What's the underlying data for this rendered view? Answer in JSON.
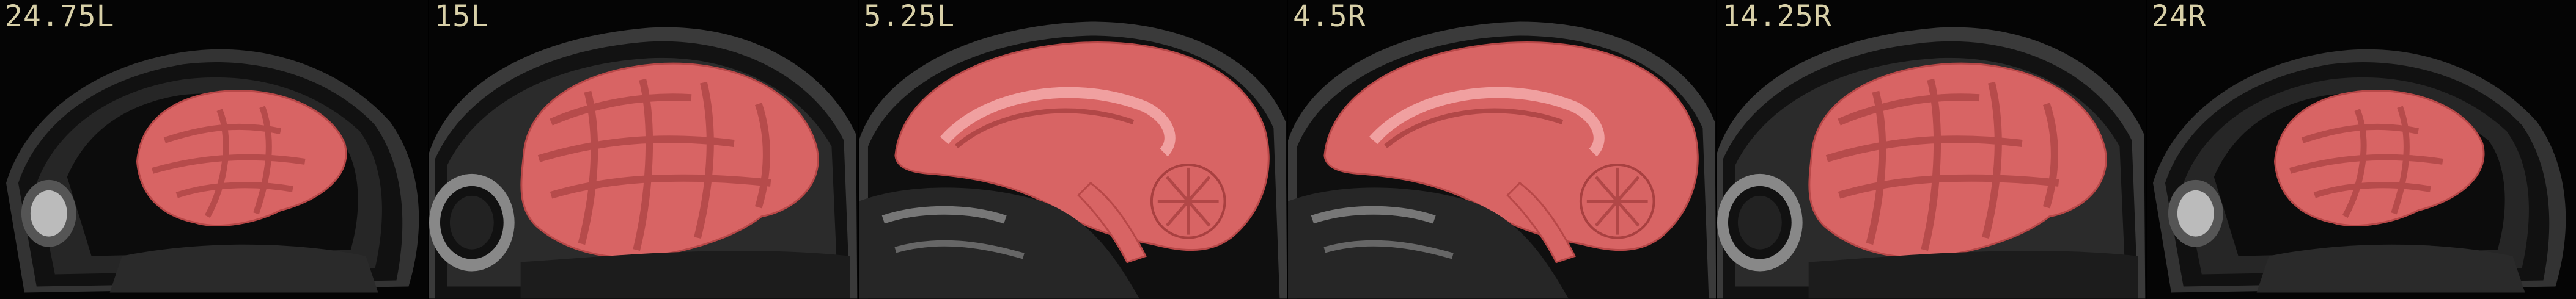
{
  "figure": {
    "description_colors": {
      "mask": "#d86464",
      "mask_edge": "#b84848",
      "tissue": "#8a8a8a",
      "bg": "#050505",
      "label": "#d8d0a8"
    },
    "panels": [
      {
        "label": "24.75L",
        "kind": "lateral"
      },
      {
        "label": "15L",
        "kind": "eye"
      },
      {
        "label": "5.25L",
        "kind": "medial"
      },
      {
        "label": "4.5R",
        "kind": "medial"
      },
      {
        "label": "14.25R",
        "kind": "eye"
      },
      {
        "label": "24R",
        "kind": "lateral"
      }
    ]
  }
}
